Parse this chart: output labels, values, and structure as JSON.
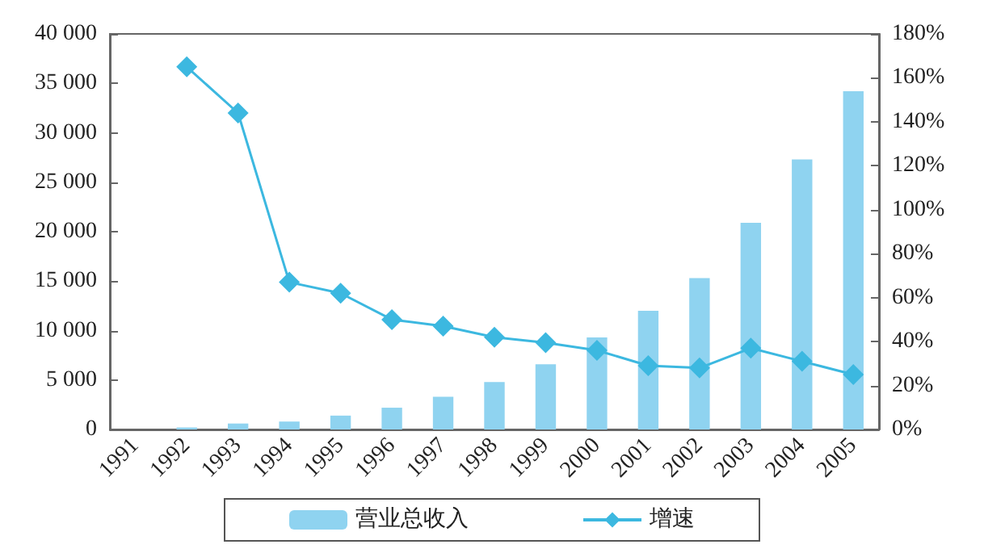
{
  "chart_data": {
    "type": "bar",
    "categories": [
      "1991",
      "1992",
      "1993",
      "1994",
      "1995",
      "1996",
      "1997",
      "1998",
      "1999",
      "2000",
      "2001",
      "2002",
      "2003",
      "2004",
      "2005"
    ],
    "series": [
      {
        "name": "营业总收入",
        "color": "#8fd3f0",
        "values": [
          null,
          200,
          600,
          800,
          1400,
          2200,
          3300,
          4800,
          6600,
          9300,
          12000,
          15300,
          20900,
          27300,
          34200
        ]
      },
      {
        "name": "增速",
        "type": "line",
        "axis": "y2",
        "color": "#3cb8e0",
        "marker": "diamond",
        "values": [
          null,
          165,
          144,
          67,
          62,
          50,
          47,
          42,
          39.5,
          36,
          29,
          28,
          37,
          31,
          25
        ]
      }
    ],
    "ylim": [
      0,
      40000
    ],
    "yticks": [
      {
        "value": 0,
        "label": "0"
      },
      {
        "value": 5000,
        "label": "5 000"
      },
      {
        "value": 10000,
        "label": "10 000"
      },
      {
        "value": 15000,
        "label": "15 000"
      },
      {
        "value": 20000,
        "label": "20 000"
      },
      {
        "value": 25000,
        "label": "25 000"
      },
      {
        "value": 30000,
        "label": "30 000"
      },
      {
        "value": 35000,
        "label": "35 000"
      },
      {
        "value": 40000,
        "label": "40 000"
      }
    ],
    "y2lim": [
      0,
      180
    ],
    "y2ticks": [
      {
        "value": 0,
        "label": "0%"
      },
      {
        "value": 20,
        "label": "20%"
      },
      {
        "value": 40,
        "label": "40%"
      },
      {
        "value": 60,
        "label": "60%"
      },
      {
        "value": 80,
        "label": "80%"
      },
      {
        "value": 100,
        "label": "100%"
      },
      {
        "value": 120,
        "label": "120%"
      },
      {
        "value": 140,
        "label": "140%"
      },
      {
        "value": 160,
        "label": "160%"
      },
      {
        "value": 180,
        "label": "180%"
      }
    ],
    "grid": false,
    "legend": "bottom"
  }
}
